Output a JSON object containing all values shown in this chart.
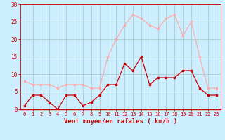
{
  "hours": [
    0,
    1,
    2,
    3,
    4,
    5,
    6,
    7,
    8,
    9,
    10,
    11,
    12,
    13,
    14,
    15,
    16,
    17,
    18,
    19,
    20,
    21,
    22,
    23
  ],
  "wind_avg": [
    1,
    4,
    4,
    2,
    0,
    4,
    4,
    1,
    2,
    4,
    7,
    7,
    13,
    11,
    15,
    7,
    9,
    9,
    9,
    11,
    11,
    6,
    4,
    4
  ],
  "wind_gust": [
    8,
    7,
    7,
    7,
    6,
    7,
    7,
    7,
    6,
    6,
    15,
    20,
    24,
    27,
    26,
    24,
    23,
    26,
    27,
    21,
    25,
    15,
    6,
    6
  ],
  "line_color_avg": "#cc0000",
  "line_color_gust": "#ffaaaa",
  "bg_color": "#cceeff",
  "grid_color": "#aacccc",
  "xlabel": "Vent moyen/en rafales ( km/h )",
  "ylim": [
    0,
    30
  ],
  "yticks": [
    0,
    5,
    10,
    15,
    20,
    25,
    30
  ],
  "xlim": [
    -0.5,
    23.5
  ],
  "axis_color": "#cc0000",
  "tick_label_color": "#cc0000"
}
